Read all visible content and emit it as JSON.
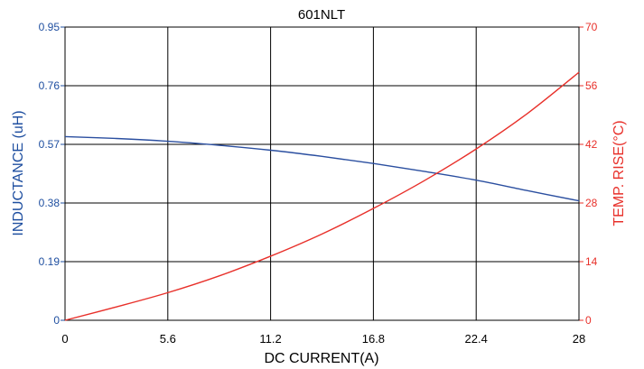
{
  "chart_data": {
    "type": "line",
    "title": "601NLT",
    "xlabel": "DC CURRENT(A)",
    "ylabel_left": "INDUCTANCE (uH)",
    "ylabel_right": "TEMP. RISE(°C)",
    "xlim": [
      0,
      28
    ],
    "ylim_left": [
      0,
      0.95
    ],
    "ylim_right": [
      0,
      70
    ],
    "x_ticks": [
      "0",
      "5.6",
      "11.2",
      "16.8",
      "22.4",
      "28"
    ],
    "y_left_ticks": [
      "0",
      "0.19",
      "0.38",
      "0.57",
      "0.76",
      "0.95"
    ],
    "y_right_ticks": [
      "0",
      "14",
      "28",
      "42",
      "56",
      "70"
    ],
    "grid": true,
    "colors": {
      "left_axis": "#1f4fa0",
      "right_axis": "#e8302a",
      "grid": "#000000"
    },
    "series": [
      {
        "axis": "left",
        "color": "#2b4fa0",
        "x": [
          0,
          2.8,
          5.6,
          8.4,
          11.2,
          14,
          16.8,
          19.6,
          22.4,
          25.2,
          28
        ],
        "y": [
          0.595,
          0.589,
          0.58,
          0.567,
          0.551,
          0.531,
          0.508,
          0.482,
          0.454,
          0.42,
          0.387
        ]
      },
      {
        "axis": "right",
        "color": "#e8302a",
        "x": [
          0,
          2.8,
          5.6,
          8.4,
          11.2,
          14,
          16.8,
          19.6,
          22.4,
          25.2,
          28
        ],
        "y": [
          0,
          3.2,
          6.6,
          10.6,
          15.3,
          20.6,
          26.7,
          33.4,
          40.9,
          49.4,
          59.2
        ]
      }
    ]
  }
}
